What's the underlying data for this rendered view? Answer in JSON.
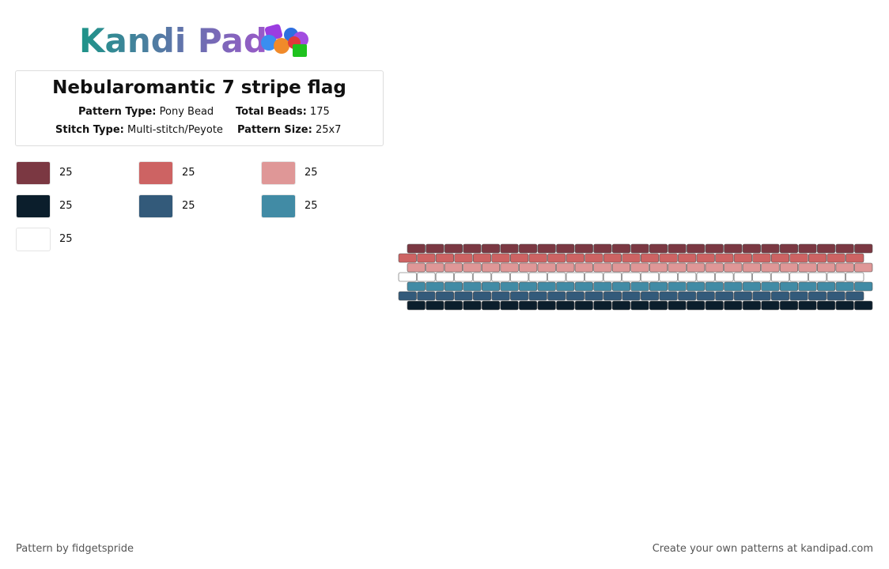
{
  "logo": "Kandi Pad",
  "title": "Nebularomantic 7 stripe flag",
  "info": [
    {
      "label": "Pattern Type:",
      "value": "Pony Bead"
    },
    {
      "label": "Total Beads:",
      "value": "175"
    },
    {
      "label": "Stitch Type:",
      "value": "Multi-stitch/Peyote"
    },
    {
      "label": "Pattern Size:",
      "value": "25x7"
    }
  ],
  "legend": [
    {
      "color": "#7b3842",
      "count": 25
    },
    {
      "color": "#cd6363",
      "count": 25
    },
    {
      "color": "#df9797",
      "count": 25
    },
    {
      "color": "#0b1e2c",
      "count": 25
    },
    {
      "color": "#335a7a",
      "count": 25
    },
    {
      "color": "#418ba5",
      "count": 25
    },
    {
      "color": "#ffffff",
      "count": 25
    }
  ],
  "pattern_rows": [
    "#7b3842",
    "#cd6363",
    "#df9797",
    "#ffffff",
    "#418ba5",
    "#335a7a",
    "#0b1e2c"
  ],
  "footer": {
    "left": "Pattern by fidgetspride",
    "right": "Create your own patterns at kandipad.com"
  }
}
